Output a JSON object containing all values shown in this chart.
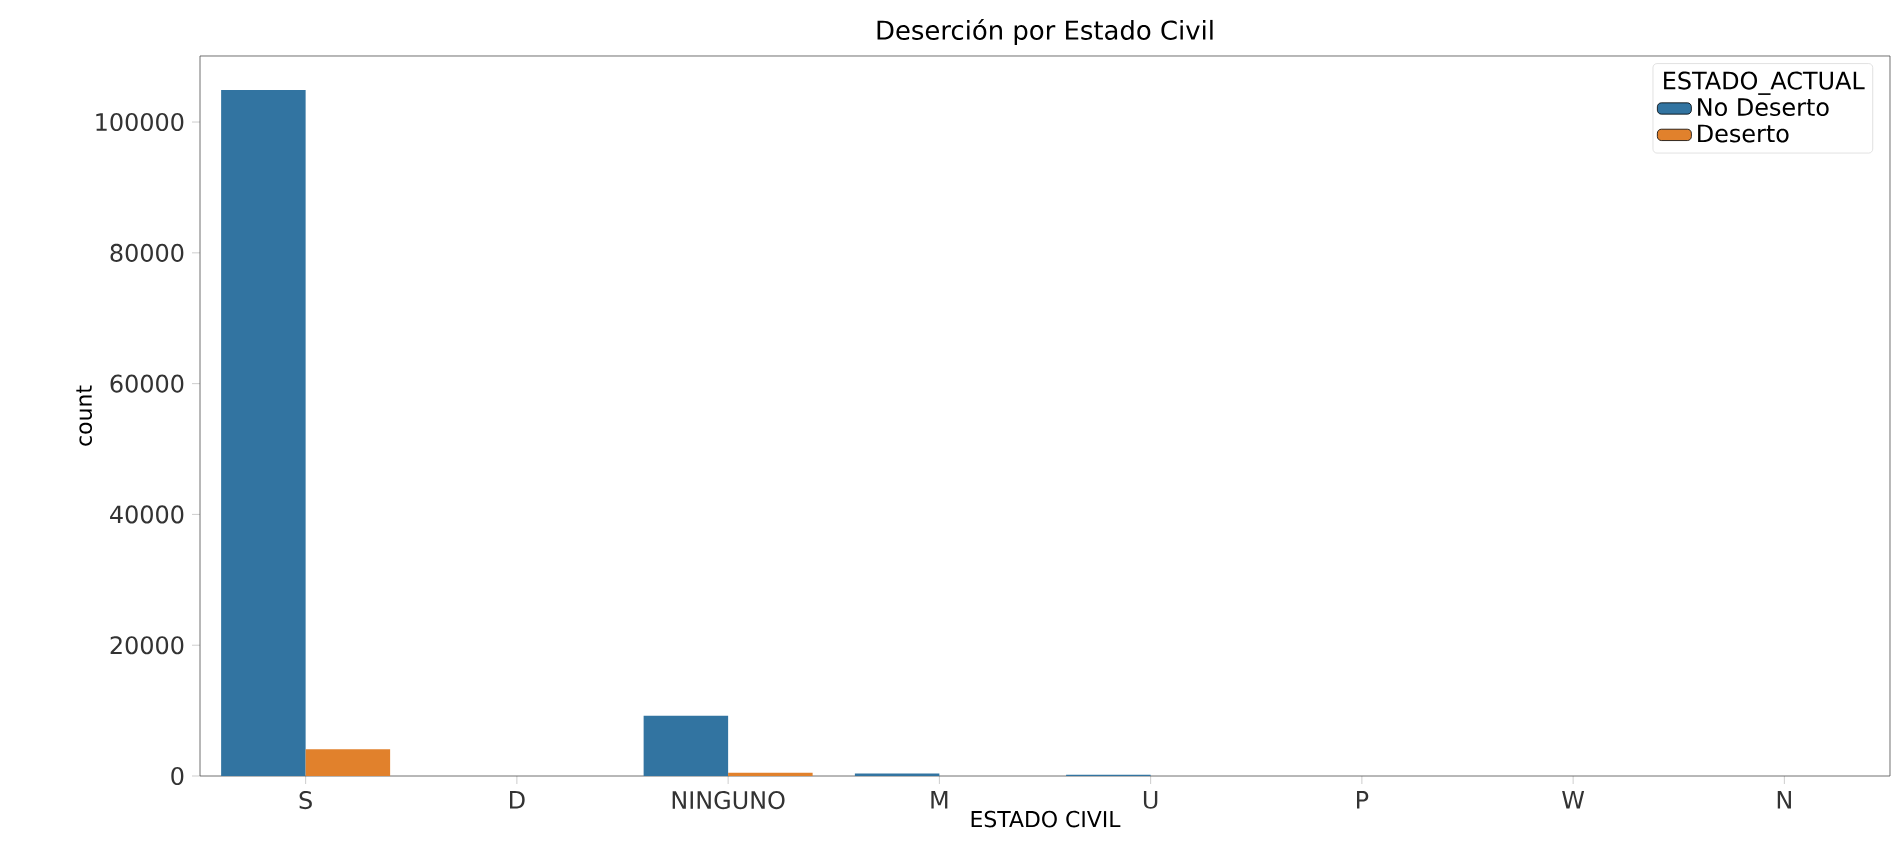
{
  "chart_data": {
    "type": "bar",
    "title": "Deserción por Estado Civil",
    "xlabel": "ESTADO CIVIL",
    "ylabel": "count",
    "legend_title": "ESTADO_ACTUAL",
    "categories": [
      "S",
      "D",
      "NINGUNO",
      "M",
      "U",
      "P",
      "W",
      "N"
    ],
    "series": [
      {
        "name": "No Deserto",
        "color": "#3274a1",
        "values": [
          104900,
          0,
          9200,
          400,
          200,
          0,
          0,
          0
        ]
      },
      {
        "name": "Deserto",
        "color": "#e1812c",
        "values": [
          4100,
          0,
          500,
          0,
          0,
          0,
          0,
          0
        ]
      }
    ],
    "ylim": [
      0,
      110100
    ],
    "yticks": [
      0,
      20000,
      40000,
      60000,
      80000,
      100000
    ],
    "grid": false,
    "legend": "top right"
  }
}
